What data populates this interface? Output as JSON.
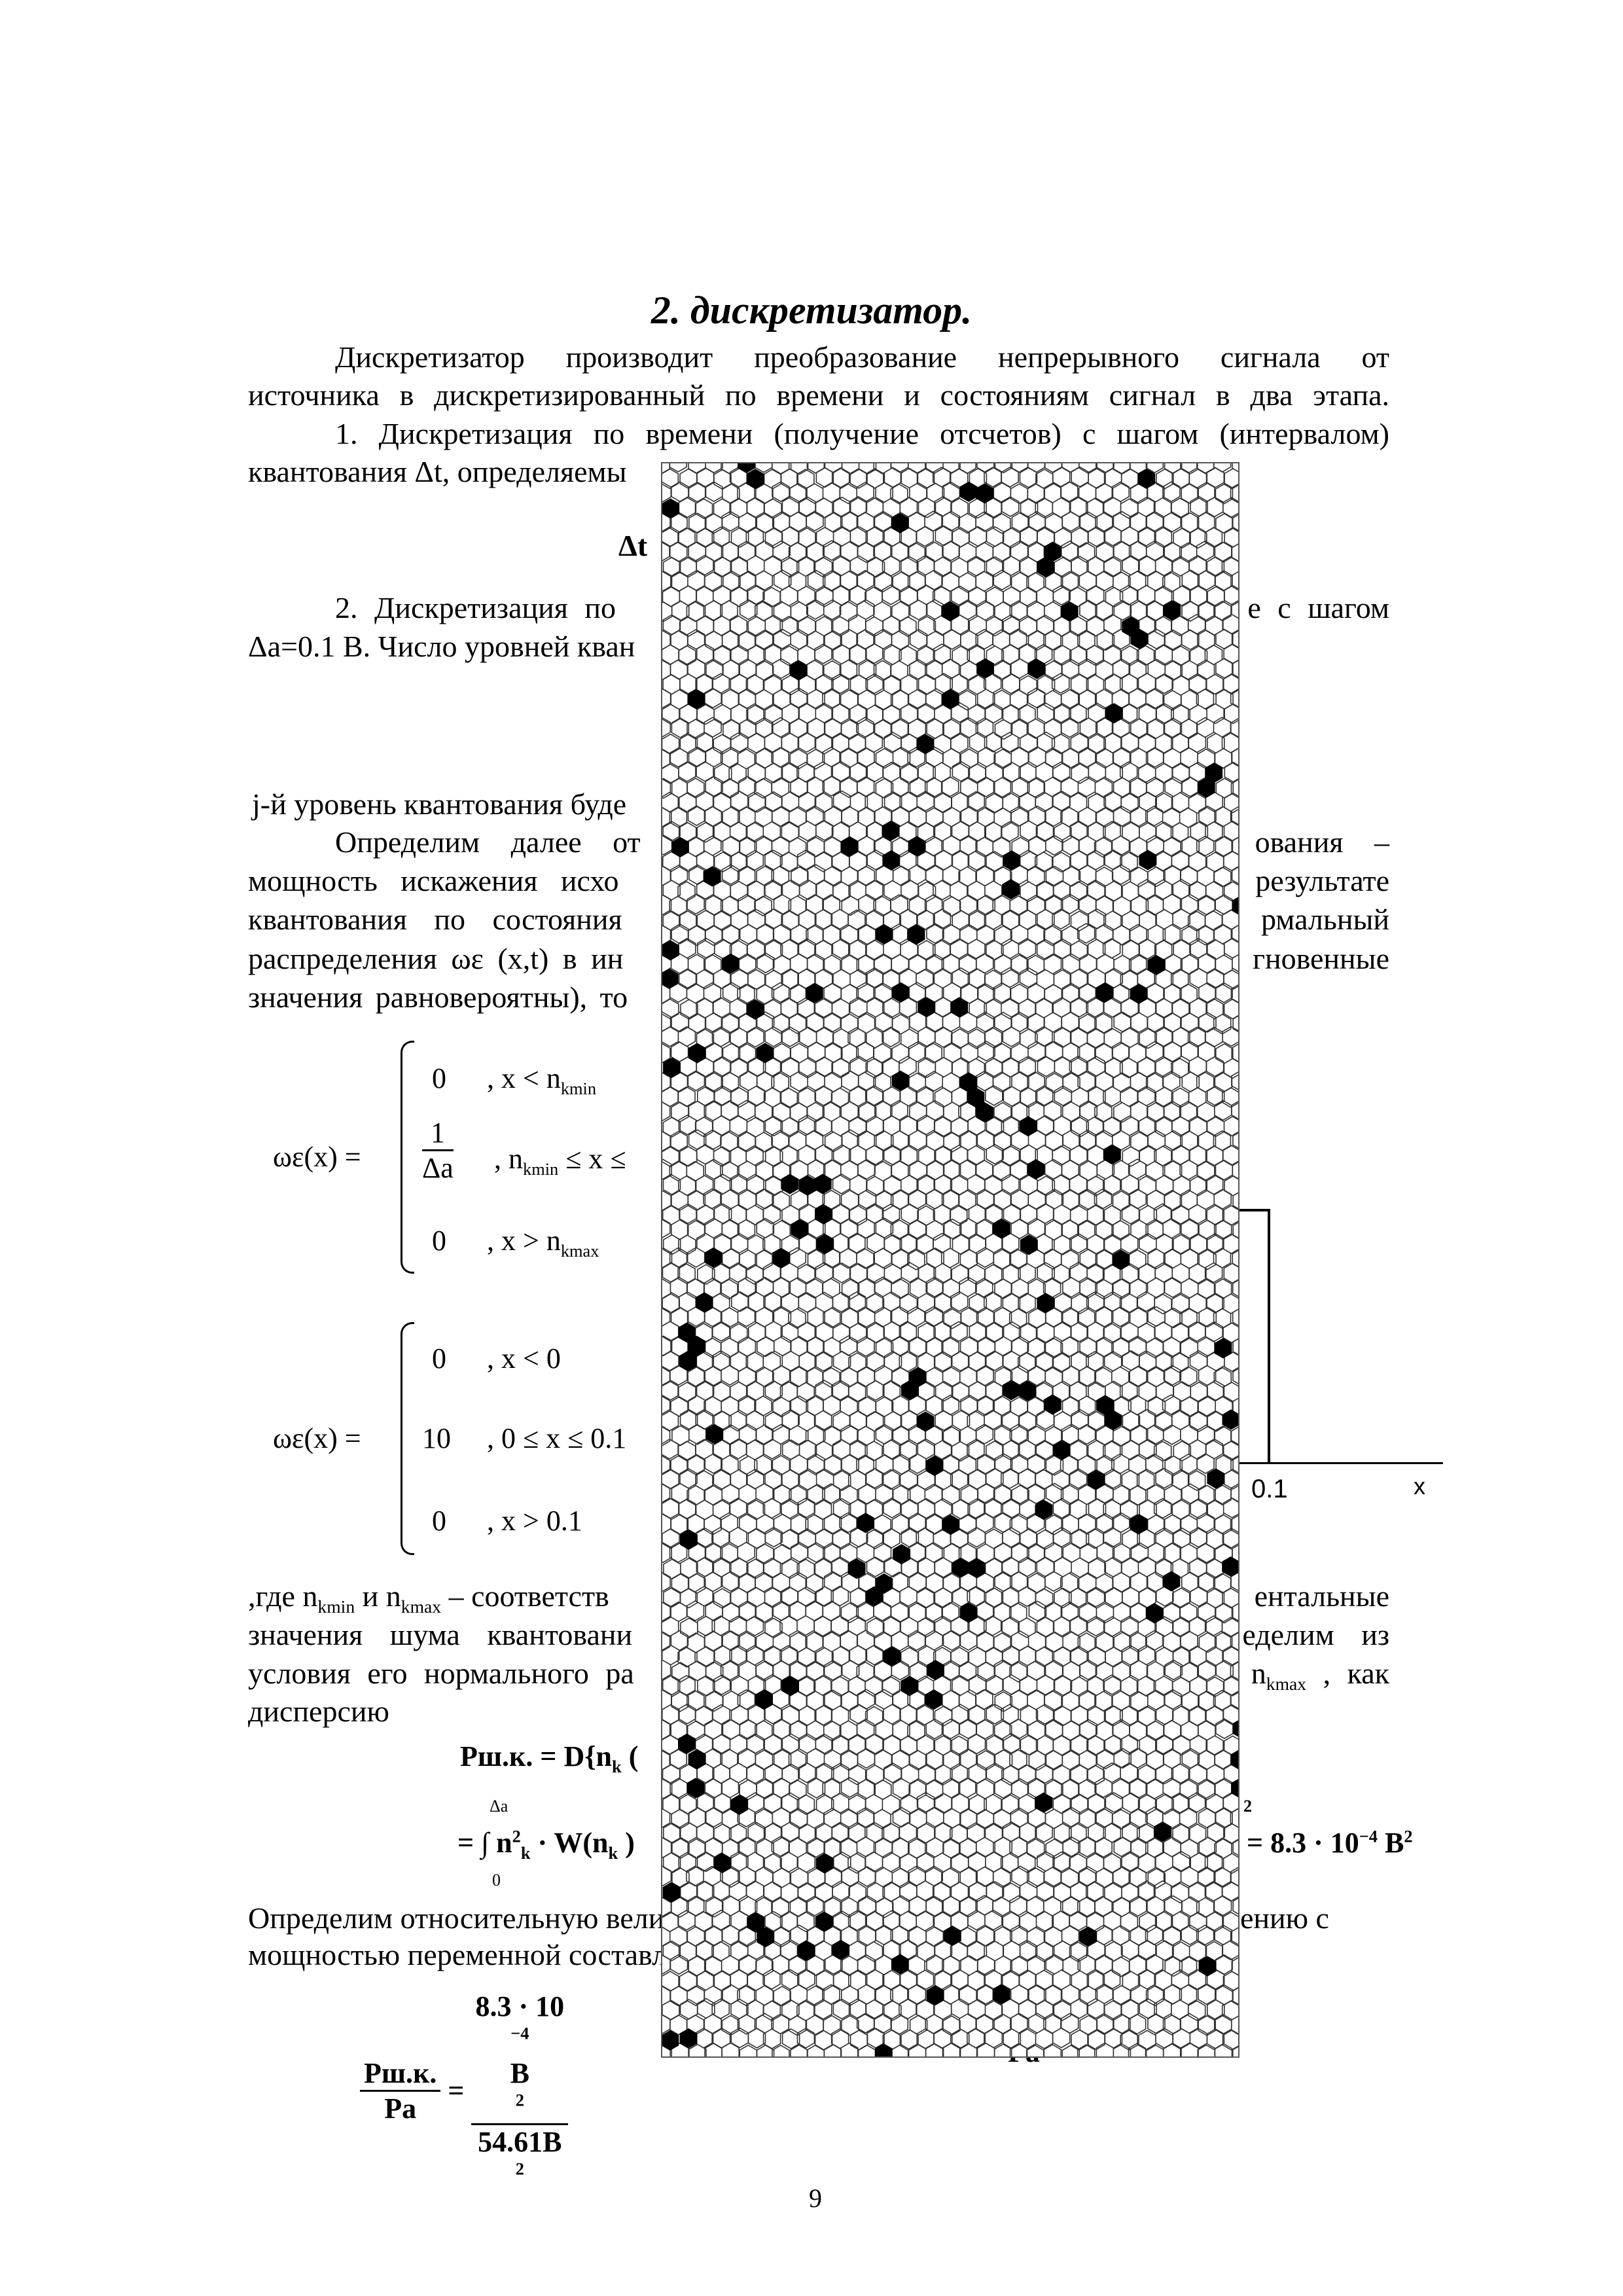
{
  "title": "2. дискретизатор.",
  "paragraph1": {
    "line1": "Дискретизатор производит преобразование непрерывного сигнала от",
    "line2": "источника в дискретизированный по времени и состояниям сигнал в два этапа."
  },
  "step1": {
    "line1": "1. Дискретизация по времени (получение отсчетов) с шагом (интервалом)",
    "line2_left": "квантования Δt, определяемы"
  },
  "delta_t_label": "Δt",
  "step2": {
    "line1_left": "2. Дискретизация по",
    "line1_right": "е с шагом",
    "line2_left": "Δa=0.1 В. Число уровней кван"
  },
  "level_line_left": "j-й уровень квантования буде",
  "paragraph2": {
    "l1_left": "Определим далее от",
    "l1_right": "ования –",
    "l2_left": "мощность искажения исхо",
    "l2_right": "результате",
    "l3_left": "квантования по состояния",
    "l3_right": "рмальный",
    "l4_left": "распределения ωε (x,t) в ин",
    "l4_right": "гновенные",
    "l5_left": "значения равновероятны), то"
  },
  "piecewise1": {
    "lhs": "ωε(x) =",
    "row1_val": "0",
    "row1_cond": ", x < n",
    "row1_sub": "kmin",
    "row2_num": "1",
    "row2_den": "Δa",
    "row2_cond": ", n",
    "row2_sub": "kmin",
    "row2_rest": " ≤ x ≤",
    "row3_val": "0",
    "row3_cond": ", x > n",
    "row3_sub": "kmax"
  },
  "piecewise2": {
    "lhs": "ωε(x) =",
    "row1_val": "0",
    "row1_cond": ", x < 0",
    "row2_val": "10",
    "row2_cond": ", 0 ≤ x ≤ 0.1",
    "row3_val": "0",
    "row3_cond": ", x > 0.1"
  },
  "graph": {
    "tick_label": "0.1",
    "axis_label": "x"
  },
  "paragraph3": {
    "l1_left": ",где n",
    "l1_sub1": "kmin",
    "l1_mid": " и n",
    "l1_sub2": "kmax",
    "l1_rest": " – соответств",
    "l1_right": "ентальные",
    "l2_left": "значения шума квантовани",
    "l2_right": "еделим из",
    "l3_left": "условия его нормального ра",
    "l3_right_main": "n",
    "l3_right_sub": "kmax",
    "l3_right_rest": " , как",
    "l4": "дисперсию"
  },
  "formula_power": {
    "lhs": "Рш.к. = D{n",
    "lhs_sub": "k",
    "lhs_rest": " (",
    "int_upper": "Δa",
    "int_lower": "0",
    "integrand": "= ∫ n",
    "integrand_sup": "2",
    "integrand_sub": "k",
    "integrand_rest": " · W(n",
    "w_sub": "k",
    "w_close": " )",
    "right_sup": "2",
    "result": "= 8.3 · 10",
    "result_exp": "−4",
    "result_unit": " В",
    "result_unit_sup": "2"
  },
  "paragraph4": {
    "l1_left": "Определим относительную вели",
    "l1_right": "ению с",
    "l2_left": "мощностью переменной составл"
  },
  "ratio": {
    "num1": "Рш.к.",
    "den1": "Ра",
    "num2": "8.3 · 10",
    "num2_exp": "−4",
    "num2_unit": " В",
    "num2_unit_sup": "2",
    "den2": "54.61В",
    "den2_sup": "2",
    "den3": "Ра"
  },
  "page_number": "9"
}
